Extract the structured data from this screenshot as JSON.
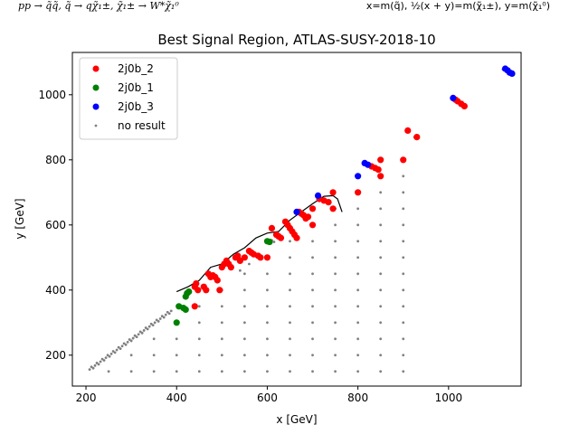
{
  "header": {
    "process_label": "pp → q̃q̃, q̃ → qχ̃₁±, χ̃₁± → W*χ̃₁⁰",
    "axes_definition": "x=m(q̃), ½(x + y)=m(χ̃₁±), y=m(χ̃₁⁰)"
  },
  "chart_data": {
    "type": "scatter",
    "title": "Best Signal Region, ATLAS-SUSY-2018-10",
    "xlabel": "x [GeV]",
    "ylabel": "y [GeV]",
    "xlim": [
      170,
      1160
    ],
    "ylim": [
      105,
      1130
    ],
    "xticks": [
      200,
      400,
      600,
      800,
      1000
    ],
    "yticks": [
      200,
      400,
      600,
      800,
      1000
    ],
    "grid": false,
    "legend_position": "top-left",
    "colors": {
      "2j0b_2": "#ff0000",
      "2j0b_1": "#008000",
      "2j0b_3": "#0000ff",
      "no result": "#808080",
      "contour": "#000000"
    },
    "series": [
      {
        "name": "2j0b_2",
        "marker": "circle",
        "points": [
          [
            440,
            410
          ],
          [
            443,
            420
          ],
          [
            447,
            400
          ],
          [
            440,
            350
          ],
          [
            460,
            410
          ],
          [
            465,
            400
          ],
          [
            470,
            450
          ],
          [
            475,
            440
          ],
          [
            480,
            445
          ],
          [
            485,
            440
          ],
          [
            490,
            430
          ],
          [
            495,
            400
          ],
          [
            500,
            470
          ],
          [
            505,
            480
          ],
          [
            510,
            490
          ],
          [
            515,
            480
          ],
          [
            520,
            470
          ],
          [
            530,
            500
          ],
          [
            535,
            505
          ],
          [
            540,
            490
          ],
          [
            550,
            500
          ],
          [
            560,
            520
          ],
          [
            565,
            515
          ],
          [
            570,
            510
          ],
          [
            580,
            505
          ],
          [
            585,
            500
          ],
          [
            600,
            500
          ],
          [
            610,
            590
          ],
          [
            620,
            570
          ],
          [
            625,
            565
          ],
          [
            630,
            560
          ],
          [
            640,
            610
          ],
          [
            645,
            600
          ],
          [
            650,
            590
          ],
          [
            655,
            580
          ],
          [
            660,
            570
          ],
          [
            665,
            560
          ],
          [
            670,
            640
          ],
          [
            675,
            635
          ],
          [
            680,
            630
          ],
          [
            685,
            620
          ],
          [
            690,
            625
          ],
          [
            700,
            650
          ],
          [
            700,
            600
          ],
          [
            715,
            680
          ],
          [
            725,
            675
          ],
          [
            735,
            670
          ],
          [
            745,
            700
          ],
          [
            745,
            650
          ],
          [
            800,
            700
          ],
          [
            830,
            780
          ],
          [
            838,
            775
          ],
          [
            845,
            770
          ],
          [
            850,
            800
          ],
          [
            850,
            750
          ],
          [
            900,
            800
          ],
          [
            910,
            890
          ],
          [
            930,
            870
          ],
          [
            1015,
            985
          ],
          [
            1020,
            980
          ],
          [
            1028,
            972
          ],
          [
            1035,
            965
          ]
        ]
      },
      {
        "name": "2j0b_1",
        "marker": "circle",
        "points": [
          [
            400,
            300
          ],
          [
            405,
            350
          ],
          [
            415,
            345
          ],
          [
            420,
            340
          ],
          [
            420,
            380
          ],
          [
            423,
            390
          ],
          [
            427,
            395
          ],
          [
            600,
            550
          ],
          [
            605,
            548
          ]
        ]
      },
      {
        "name": "2j0b_3",
        "marker": "circle",
        "points": [
          [
            665,
            640
          ],
          [
            712,
            690
          ],
          [
            800,
            750
          ],
          [
            815,
            790
          ],
          [
            822,
            785
          ],
          [
            1010,
            990
          ],
          [
            1125,
            1080
          ],
          [
            1130,
            1075
          ],
          [
            1135,
            1068
          ],
          [
            1140,
            1065
          ]
        ]
      },
      {
        "name": "no result",
        "marker": "dot",
        "points": []
      }
    ],
    "contour": [
      [
        400,
        395
      ],
      [
        425,
        410
      ],
      [
        450,
        430
      ],
      [
        475,
        470
      ],
      [
        500,
        480
      ],
      [
        525,
        510
      ],
      [
        550,
        530
      ],
      [
        575,
        560
      ],
      [
        600,
        575
      ],
      [
        625,
        580
      ],
      [
        650,
        615
      ],
      [
        675,
        640
      ],
      [
        700,
        665
      ],
      [
        725,
        688
      ],
      [
        745,
        690
      ],
      [
        755,
        680
      ],
      [
        760,
        660
      ],
      [
        765,
        640
      ]
    ]
  }
}
